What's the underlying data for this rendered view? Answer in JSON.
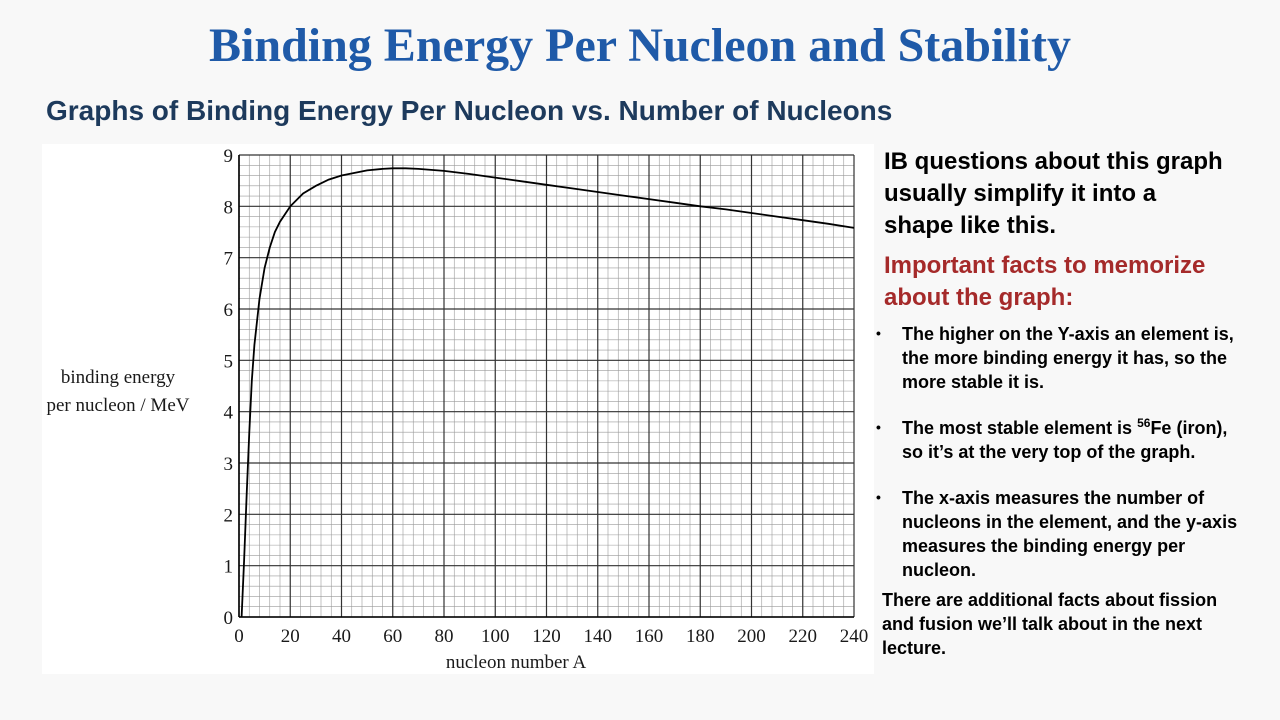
{
  "slide": {
    "title": "Binding Energy Per Nucleon and Stability",
    "subtitle": "Graphs of Binding Energy Per Nucleon vs. Number of Nucleons"
  },
  "panel": {
    "intro": "IB questions about this graph usually simplify it into a shape like this.",
    "facts_heading": "Important facts to memorize about the graph:",
    "facts": [
      {
        "text": "The higher on the Y-axis an element is, the more binding energy it has, so the more stable it is."
      },
      {
        "pre": "The most stable element is ",
        "sup": "56",
        "post": "Fe (iron), so it’s at the very top of the graph."
      },
      {
        "text": "The x-axis measures the number of nucleons in the element, and the y-axis measures the binding energy per nucleon."
      }
    ],
    "closing": "There are additional facts about fission and fusion we’ll talk about in the next lecture.",
    "bullet_glyph": "•"
  },
  "chart_data": {
    "type": "line",
    "xlabel": "nucleon number A",
    "ylabel_line1": "binding energy",
    "ylabel_line2": "per nucleon / MeV",
    "xlim": [
      0,
      240
    ],
    "ylim": [
      0,
      9
    ],
    "xticks": [
      0,
      20,
      40,
      60,
      80,
      100,
      120,
      140,
      160,
      180,
      200,
      220,
      240
    ],
    "yticks": [
      0,
      1,
      2,
      3,
      4,
      5,
      6,
      7,
      8,
      9
    ],
    "grid": true,
    "minor_grid_x": 4,
    "minor_grid_y": 0.2,
    "series": [
      {
        "x": [
          1,
          2,
          3,
          4,
          5,
          6,
          8,
          10,
          12,
          14,
          16,
          20,
          25,
          30,
          35,
          40,
          50,
          56,
          60,
          65,
          70,
          80,
          90,
          100,
          110,
          120,
          130,
          140,
          150,
          160,
          170,
          180,
          190,
          200,
          210,
          220,
          230,
          240
        ],
        "y": [
          0.0,
          1.1,
          2.4,
          3.6,
          4.6,
          5.3,
          6.2,
          6.8,
          7.2,
          7.5,
          7.7,
          8.0,
          8.25,
          8.4,
          8.52,
          8.6,
          8.7,
          8.73,
          8.74,
          8.74,
          8.73,
          8.69,
          8.63,
          8.56,
          8.49,
          8.42,
          8.35,
          8.28,
          8.21,
          8.14,
          8.07,
          8.0,
          7.94,
          7.87,
          7.8,
          7.73,
          7.66,
          7.58
        ]
      }
    ],
    "line_color": "#000000",
    "grid_color": "#9a9a9a"
  }
}
